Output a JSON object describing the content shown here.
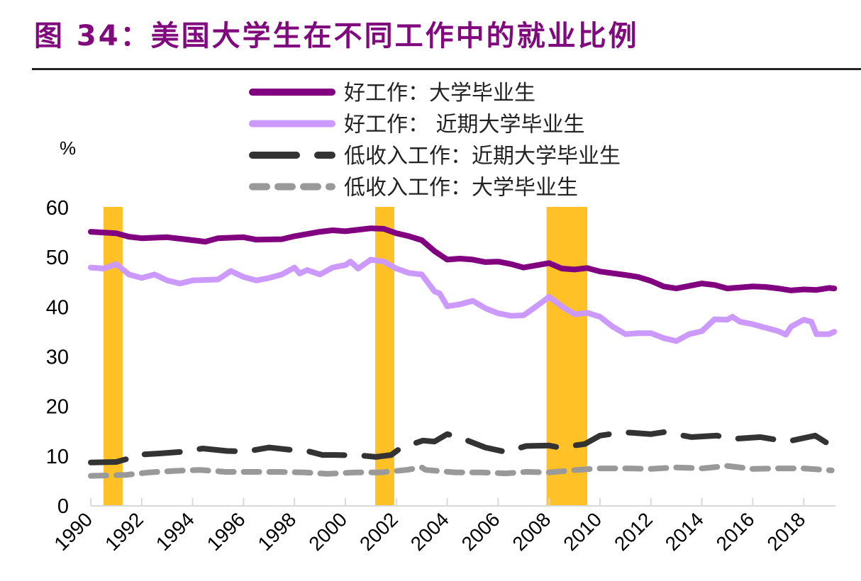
{
  "title": "图 34：美国大学生在不同工作中的就业比例",
  "chart_data": {
    "type": "line",
    "title": "图 34：美国大学生在不同工作中的就业比例",
    "ylabel": "%",
    "xlabel": "",
    "ylim": [
      0,
      60
    ],
    "yticks": [
      "0",
      "10",
      "20",
      "30",
      "40",
      "50",
      "60"
    ],
    "xlim": [
      1990,
      2019.25
    ],
    "xticks": [
      "1990",
      "1992",
      "1994",
      "1996",
      "1998",
      "2000",
      "2002",
      "2004",
      "2006",
      "2008",
      "2010",
      "2012",
      "2014",
      "2016",
      "2018"
    ],
    "grid": false,
    "legend": "top-center",
    "recession_shading": {
      "color": "#FFC125",
      "periods": [
        [
          1990.5,
          1991.25
        ],
        [
          2001.17,
          2001.92
        ],
        [
          2007.9,
          2009.5
        ]
      ]
    },
    "series": [
      {
        "name": "好工作：大学毕业生",
        "color": "#800080",
        "style": "solid",
        "points": [
          [
            1990,
            55.0
          ],
          [
            1991,
            54.7
          ],
          [
            1991.5,
            54.0
          ],
          [
            1992,
            53.7
          ],
          [
            1993,
            53.9
          ],
          [
            1994,
            53.3
          ],
          [
            1994.5,
            53.0
          ],
          [
            1995,
            53.7
          ],
          [
            1996,
            53.9
          ],
          [
            1996.5,
            53.4
          ],
          [
            1997.5,
            53.5
          ],
          [
            1998,
            54.1
          ],
          [
            1999,
            55.0
          ],
          [
            1999.5,
            55.3
          ],
          [
            2000,
            55.1
          ],
          [
            2001,
            55.7
          ],
          [
            2001.5,
            55.6
          ],
          [
            2002,
            54.7
          ],
          [
            2002.5,
            54.1
          ],
          [
            2003,
            53.3
          ],
          [
            2003.5,
            51.1
          ],
          [
            2004,
            49.4
          ],
          [
            2004.5,
            49.6
          ],
          [
            2005,
            49.4
          ],
          [
            2005.5,
            48.9
          ],
          [
            2006,
            49.0
          ],
          [
            2006.5,
            48.5
          ],
          [
            2007,
            47.8
          ],
          [
            2008,
            48.7
          ],
          [
            2008.5,
            47.6
          ],
          [
            2009,
            47.4
          ],
          [
            2009.5,
            47.7
          ],
          [
            2010,
            47.0
          ],
          [
            2011,
            46.3
          ],
          [
            2011.5,
            45.9
          ],
          [
            2012,
            45.1
          ],
          [
            2012.5,
            44.0
          ],
          [
            2013,
            43.6
          ],
          [
            2013.5,
            44.1
          ],
          [
            2014,
            44.6
          ],
          [
            2014.5,
            44.3
          ],
          [
            2015,
            43.6
          ],
          [
            2016,
            44.0
          ],
          [
            2016.5,
            43.9
          ],
          [
            2017,
            43.6
          ],
          [
            2017.5,
            43.2
          ],
          [
            2018,
            43.4
          ],
          [
            2018.5,
            43.3
          ],
          [
            2019,
            43.7
          ],
          [
            2019.2,
            43.6
          ]
        ]
      },
      {
        "name": "好工作： 近期大学毕业生",
        "color": "#CC99FF",
        "style": "solid",
        "points": [
          [
            1990,
            47.8
          ],
          [
            1990.5,
            47.6
          ],
          [
            1991,
            48.5
          ],
          [
            1991.5,
            46.4
          ],
          [
            1992,
            45.7
          ],
          [
            1992.5,
            46.4
          ],
          [
            1993,
            45.2
          ],
          [
            1993.5,
            44.6
          ],
          [
            1994,
            45.2
          ],
          [
            1995,
            45.4
          ],
          [
            1995.5,
            47.1
          ],
          [
            1996,
            45.9
          ],
          [
            1996.5,
            45.2
          ],
          [
            1997,
            45.7
          ],
          [
            1997.5,
            46.4
          ],
          [
            1998,
            47.8
          ],
          [
            1998.2,
            46.6
          ],
          [
            1998.5,
            47.3
          ],
          [
            1999,
            46.4
          ],
          [
            1999.5,
            47.8
          ],
          [
            2000,
            48.3
          ],
          [
            2000.2,
            49.0
          ],
          [
            2000.5,
            47.6
          ],
          [
            2001,
            49.4
          ],
          [
            2001.5,
            49.0
          ],
          [
            2002,
            47.6
          ],
          [
            2002.5,
            46.7
          ],
          [
            2003,
            46.4
          ],
          [
            2003.5,
            43.0
          ],
          [
            2003.7,
            42.6
          ],
          [
            2004,
            40.0
          ],
          [
            2004.5,
            40.4
          ],
          [
            2005,
            41.1
          ],
          [
            2005.5,
            39.6
          ],
          [
            2006,
            38.6
          ],
          [
            2006.5,
            38.1
          ],
          [
            2007,
            38.2
          ],
          [
            2007.5,
            40.0
          ],
          [
            2008,
            41.9
          ],
          [
            2008.5,
            40.0
          ],
          [
            2009,
            38.4
          ],
          [
            2009.5,
            38.7
          ],
          [
            2010,
            37.9
          ],
          [
            2010.5,
            35.9
          ],
          [
            2011,
            34.4
          ],
          [
            2011.5,
            34.6
          ],
          [
            2012,
            34.6
          ],
          [
            2012.5,
            33.6
          ],
          [
            2013,
            33.0
          ],
          [
            2013.5,
            34.4
          ],
          [
            2014,
            35.0
          ],
          [
            2014.5,
            37.4
          ],
          [
            2015,
            37.3
          ],
          [
            2015.2,
            37.9
          ],
          [
            2015.5,
            36.9
          ],
          [
            2016,
            36.4
          ],
          [
            2016.5,
            35.7
          ],
          [
            2017,
            35.0
          ],
          [
            2017.3,
            34.3
          ],
          [
            2017.5,
            35.9
          ],
          [
            2018,
            37.3
          ],
          [
            2018.3,
            36.9
          ],
          [
            2018.5,
            34.4
          ],
          [
            2019,
            34.4
          ],
          [
            2019.2,
            34.9
          ]
        ]
      },
      {
        "name": "低收入工作：近期大学毕业生",
        "color": "#333333",
        "style": "long-dash",
        "points": [
          [
            1990,
            8.6
          ],
          [
            1991,
            8.7
          ],
          [
            1991.5,
            9.4
          ],
          [
            1991.7,
            10.1
          ],
          [
            1992.7,
            10.4
          ],
          [
            1993.5,
            10.7
          ],
          [
            1994.4,
            11.4
          ],
          [
            1995.35,
            10.9
          ],
          [
            1996.1,
            10.8
          ],
          [
            1997,
            11.6
          ],
          [
            1997.9,
            11.1
          ],
          [
            1998.5,
            10.9
          ],
          [
            1999.1,
            10.1
          ],
          [
            1999.6,
            10.1
          ],
          [
            2000.6,
            10.0
          ],
          [
            2001.2,
            9.7
          ],
          [
            2001.8,
            10.1
          ],
          [
            2002.2,
            11.6
          ],
          [
            2003.05,
            13.0
          ],
          [
            2003.5,
            12.8
          ],
          [
            2004,
            14.3
          ],
          [
            2004.6,
            13.4
          ],
          [
            2005.5,
            11.6
          ],
          [
            2006.3,
            10.7
          ],
          [
            2007.1,
            11.9
          ],
          [
            2008,
            12.0
          ],
          [
            2008.4,
            11.6
          ],
          [
            2009.4,
            12.3
          ],
          [
            2010,
            14.0
          ],
          [
            2010.9,
            14.7
          ],
          [
            2012,
            14.3
          ],
          [
            2012.5,
            14.7
          ],
          [
            2013.6,
            13.7
          ],
          [
            2014.6,
            14.0
          ],
          [
            2015.15,
            13.3
          ],
          [
            2016.3,
            13.7
          ],
          [
            2017.35,
            12.8
          ],
          [
            2018.45,
            14.0
          ],
          [
            2018.95,
            12.4
          ]
        ]
      },
      {
        "name": "低收入工作：大学毕业生",
        "color": "#999999",
        "style": "short-dash",
        "points": [
          [
            1990,
            5.9
          ],
          [
            1991.4,
            6.1
          ],
          [
            1992.3,
            6.6
          ],
          [
            1993.3,
            6.9
          ],
          [
            1994.3,
            7.1
          ],
          [
            1995.3,
            6.7
          ],
          [
            1996.4,
            6.7
          ],
          [
            1997.3,
            6.7
          ],
          [
            1998.4,
            6.6
          ],
          [
            1999.3,
            6.3
          ],
          [
            2000.4,
            6.6
          ],
          [
            2001.4,
            6.6
          ],
          [
            2002.4,
            7.1
          ],
          [
            2003,
            7.6
          ],
          [
            2003.15,
            7.1
          ],
          [
            2004.3,
            6.6
          ],
          [
            2005.3,
            6.6
          ],
          [
            2006.3,
            6.4
          ],
          [
            2007.1,
            6.7
          ],
          [
            2008,
            6.6
          ],
          [
            2009.1,
            7.1
          ],
          [
            2010,
            7.4
          ],
          [
            2011.1,
            7.4
          ],
          [
            2012,
            7.3
          ],
          [
            2013,
            7.6
          ],
          [
            2014,
            7.4
          ],
          [
            2015,
            7.9
          ],
          [
            2016,
            7.3
          ],
          [
            2017,
            7.4
          ],
          [
            2018,
            7.4
          ],
          [
            2019.1,
            7.0
          ]
        ]
      }
    ]
  }
}
